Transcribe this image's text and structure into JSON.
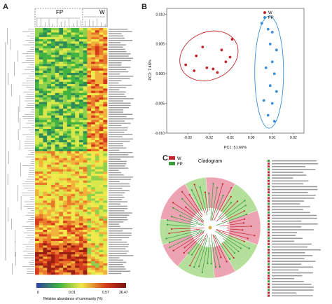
{
  "panels": {
    "a": "A",
    "b": "B",
    "c": "C"
  },
  "heatmap": {
    "group_fp": "FP",
    "group_w": "W",
    "colorbar_ticks": [
      "0",
      "0.01",
      "0.57",
      "26.47"
    ],
    "colorbar_label": "Relative abundance of community (%)",
    "colors": {
      "low": "#2b3fa8",
      "mid_low": "#3fb23f",
      "mid": "#f2e84a",
      "high": "#d43a1a",
      "max": "#7a1410"
    }
  },
  "pca": {
    "legend": [
      {
        "label": "W",
        "color": "#c0262d"
      },
      {
        "label": "FP",
        "color": "#3a8fd6"
      }
    ],
    "colors": {
      "W": "#c0262d",
      "FP": "#3a8fd6"
    }
  },
  "cladogram": {
    "title": "Cladogram",
    "legend": [
      {
        "label": "W",
        "color": "#c0262d"
      },
      {
        "label": "FP",
        "color": "#3c9a3c"
      }
    ],
    "colors": {
      "W": "#e8849a",
      "FP": "#9bd67a"
    }
  },
  "chart_data": [
    {
      "type": "scatter",
      "panel": "B",
      "xlabel": "PC1: 51.66%",
      "ylabel": "PC2: 7.48%",
      "xlim": [
        -0.04,
        0.025
      ],
      "ylim": [
        -0.01,
        0.011
      ],
      "xticks": [
        "-0.03",
        "-0.02",
        "-0.01",
        "0.00",
        "0.01",
        "0.02"
      ],
      "yticks": [
        "0.010",
        "0.005",
        "0.000",
        "-0.005",
        "-0.010"
      ],
      "series": [
        {
          "name": "W",
          "points": [
            [
              -0.031,
              0.0015
            ],
            [
              -0.027,
              0.0005
            ],
            [
              -0.026,
              0.003
            ],
            [
              -0.023,
              0.0045
            ],
            [
              -0.021,
              0.001
            ],
            [
              -0.018,
              0.0008
            ],
            [
              -0.016,
              0.0002
            ],
            [
              -0.014,
              0.004
            ],
            [
              -0.012,
              0.002
            ],
            [
              -0.01,
              0.0028
            ],
            [
              -0.009,
              0.0058
            ]
          ]
        },
        {
          "name": "FP",
          "points": [
            [
              0.005,
              0.0085
            ],
            [
              0.008,
              0.0075
            ],
            [
              0.01,
              0.007
            ],
            [
              0.009,
              0.005
            ],
            [
              0.012,
              0.004
            ],
            [
              0.01,
              0.002
            ],
            [
              0.007,
              0.001
            ],
            [
              0.011,
              0.0
            ],
            [
              0.009,
              -0.002
            ],
            [
              0.012,
              -0.003
            ],
            [
              0.01,
              -0.005
            ],
            [
              0.008,
              -0.007
            ],
            [
              0.011,
              -0.008
            ],
            [
              0.006,
              -0.0045
            ]
          ]
        }
      ]
    }
  ]
}
